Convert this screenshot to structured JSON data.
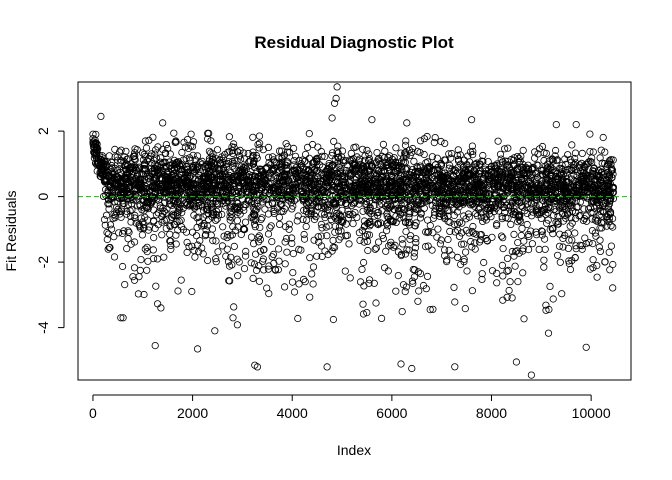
{
  "chart_data": {
    "type": "scatter",
    "title": "Residual Diagnostic Plot",
    "xlabel": "Index",
    "ylabel": "Fit Residuals",
    "xlim": [
      -300,
      10800
    ],
    "ylim": [
      -5.6,
      3.5
    ],
    "x_ticks": [
      0,
      2000,
      4000,
      6000,
      8000,
      10000
    ],
    "y_ticks": [
      -4,
      -2,
      0,
      2
    ],
    "reference_line": {
      "y": 0,
      "color": "#00cc00",
      "style": "dashed"
    },
    "marker": "open-circle",
    "n_points_approx": 10450,
    "grid": false,
    "legend": "none",
    "notable_points": [
      {
        "x": 4900,
        "y": 3.35
      },
      {
        "x": 4880,
        "y": 3.0
      },
      {
        "x": 4850,
        "y": 2.85
      },
      {
        "x": 4800,
        "y": 2.4
      },
      {
        "x": 160,
        "y": 2.45
      },
      {
        "x": 1400,
        "y": 2.25
      },
      {
        "x": 5600,
        "y": 2.35
      },
      {
        "x": 6300,
        "y": 2.25
      },
      {
        "x": 7600,
        "y": 2.35
      },
      {
        "x": 9300,
        "y": 2.2
      },
      {
        "x": 9700,
        "y": 2.2
      },
      {
        "x": 560,
        "y": -3.7
      },
      {
        "x": 1250,
        "y": -4.55
      },
      {
        "x": 2100,
        "y": -4.65
      },
      {
        "x": 3300,
        "y": -5.2
      },
      {
        "x": 4700,
        "y": -5.2
      },
      {
        "x": 6400,
        "y": -5.25
      },
      {
        "x": 8500,
        "y": -5.05
      },
      {
        "x": 8800,
        "y": -5.45
      },
      {
        "x": 9900,
        "y": -4.6
      }
    ]
  }
}
